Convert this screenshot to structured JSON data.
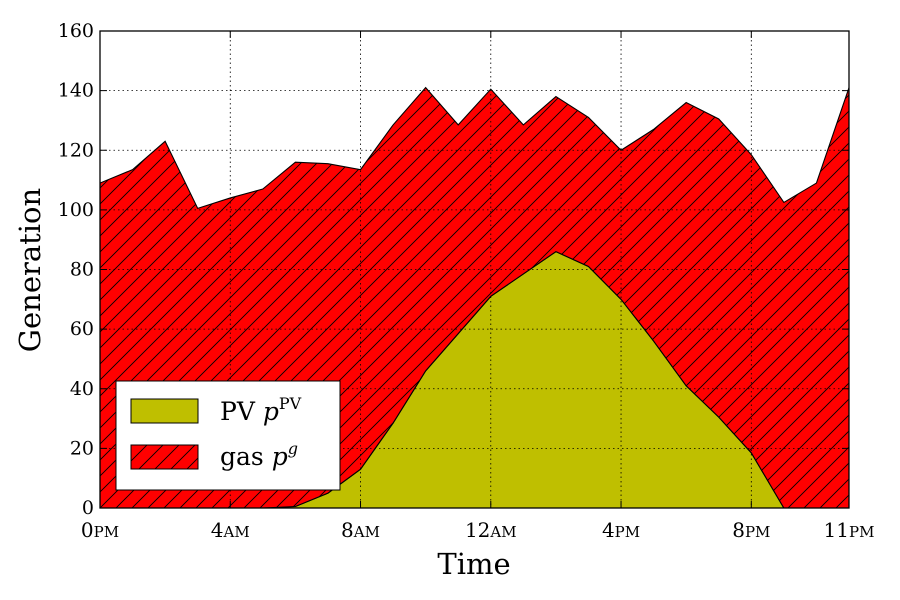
{
  "chart_data": {
    "type": "area",
    "stacked": true,
    "xlabel": "Time",
    "ylabel": "Generation",
    "ylim": [
      0,
      160
    ],
    "xlim": [
      0,
      23
    ],
    "yticks": [
      0,
      20,
      40,
      60,
      80,
      100,
      120,
      140,
      160
    ],
    "xticks": [
      {
        "x": 0,
        "main": "0",
        "suffix": "PM"
      },
      {
        "x": 4,
        "main": "4",
        "suffix": "AM"
      },
      {
        "x": 8,
        "main": "8",
        "suffix": "AM"
      },
      {
        "x": 12,
        "main": "12",
        "suffix": "AM"
      },
      {
        "x": 16,
        "main": "4",
        "suffix": "PM"
      },
      {
        "x": 20,
        "main": "8",
        "suffix": "PM"
      },
      {
        "x": 23,
        "main": "11",
        "suffix": "PM"
      }
    ],
    "grid": true,
    "legend_position": "lower-left",
    "x": [
      0,
      1,
      2,
      3,
      4,
      5,
      6,
      7,
      8,
      9,
      10,
      11,
      12,
      13,
      14,
      15,
      16,
      17,
      18,
      19,
      20,
      21,
      22,
      23
    ],
    "series": [
      {
        "name": "PV",
        "superscript": "PV",
        "color": "#bfbf00",
        "hatch": false,
        "values": [
          0,
          0,
          0,
          0,
          0,
          0,
          0.5,
          5,
          13,
          28.5,
          46,
          58.5,
          71,
          78.5,
          86,
          81,
          70,
          56,
          41,
          30.5,
          18.5,
          0,
          0,
          0
        ]
      },
      {
        "name": "gas",
        "superscript": "g",
        "color": "#ff0000",
        "hatch": true,
        "values": [
          109,
          113.5,
          123,
          100.5,
          104,
          107,
          115.5,
          110.5,
          100.5,
          100,
          95,
          70,
          69.5,
          50,
          52,
          50,
          50,
          71,
          95,
          100,
          100,
          102.5,
          109,
          141
        ]
      }
    ]
  }
}
